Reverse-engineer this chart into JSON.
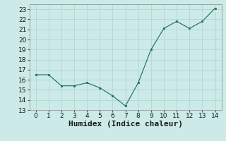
{
  "x": [
    0,
    1,
    2,
    3,
    4,
    5,
    6,
    7,
    8,
    9,
    10,
    11,
    12,
    13,
    14
  ],
  "y": [
    16.5,
    16.5,
    15.4,
    15.4,
    15.7,
    15.2,
    14.4,
    13.4,
    15.7,
    19.0,
    21.1,
    21.8,
    21.1,
    21.8,
    23.1
  ],
  "xlabel": "Humidex (Indice chaleur)",
  "ylim": [
    13,
    23.5
  ],
  "xlim": [
    -0.5,
    14.5
  ],
  "yticks": [
    13,
    14,
    15,
    16,
    17,
    18,
    19,
    20,
    21,
    22,
    23
  ],
  "xticks": [
    0,
    1,
    2,
    3,
    4,
    5,
    6,
    7,
    8,
    9,
    10,
    11,
    12,
    13,
    14
  ],
  "line_color": "#1a6b5a",
  "marker_color": "#1a6b5a",
  "bg_color": "#cceae7",
  "grid_color": "#b0d8d4",
  "tick_fontsize": 6.5,
  "xlabel_fontsize": 8.0
}
